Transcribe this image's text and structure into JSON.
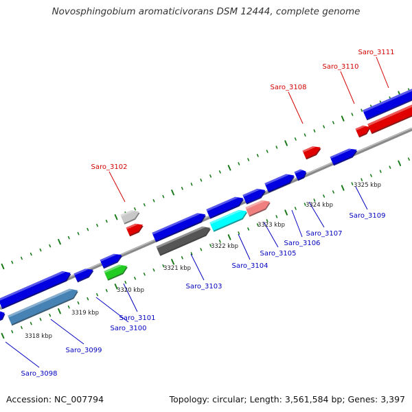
{
  "title": "Novosphingobium aromaticivorans DSM 12444, complete genome",
  "accession_label": "Accession: NC_007794",
  "topology_label": "Topology: circular; Length: 3,561,584 bp; Genes: 3,397",
  "colors": {
    "backbone": "#8a8a8a",
    "tick": "#1a7a1a",
    "forward_gene": "#0000e0",
    "reverse_gene": "#e00000",
    "label_top": "#d40000",
    "label_bottom": "#0000c0",
    "scale_text": "#222222"
  },
  "scale_labels": [
    "3318 kbp",
    "3319 kbp",
    "3320 kbp",
    "3321 kbp",
    "3322 kbp",
    "3323 kbp",
    "3324 kbp",
    "3325 kbp"
  ],
  "genes": [
    {
      "id": "g3097",
      "label": "",
      "color": "#0000e0"
    },
    {
      "id": "g3098",
      "label": "Saro_3098",
      "color": "#0000e0"
    },
    {
      "id": "g3099",
      "label": "Saro_3099",
      "color": "#4682b4"
    },
    {
      "id": "g3100",
      "label": "Saro_3100",
      "color": "#0000e0"
    },
    {
      "id": "g3101",
      "label": "Saro_3101",
      "color": "#0000e0"
    },
    {
      "id": "g3101b",
      "label": "",
      "color": "#22cc22"
    },
    {
      "id": "g3102a",
      "label": "Saro_3102",
      "color": "#c8c8c8"
    },
    {
      "id": "g3102b",
      "label": "",
      "color": "#e00000"
    },
    {
      "id": "g3103",
      "label": "Saro_3103",
      "color": "#0000e0"
    },
    {
      "id": "g3103b",
      "label": "",
      "color": "#555555"
    },
    {
      "id": "g3104",
      "label": "Saro_3104",
      "color": "#0000e0"
    },
    {
      "id": "g3104b",
      "label": "",
      "color": "#00ffff"
    },
    {
      "id": "g3105",
      "label": "Saro_3105",
      "color": "#0000e0"
    },
    {
      "id": "g3105b",
      "label": "",
      "color": "#f08080"
    },
    {
      "id": "g3106",
      "label": "Saro_3106",
      "color": "#0000e0"
    },
    {
      "id": "g3107",
      "label": "Saro_3107",
      "color": "#0000e0"
    },
    {
      "id": "g3108",
      "label": "Saro_3108",
      "color": "#e00000"
    },
    {
      "id": "g3109",
      "label": "Saro_3109",
      "color": "#0000e0"
    },
    {
      "id": "g3110",
      "label": "Saro_3110",
      "color": "#e00000"
    },
    {
      "id": "g3111",
      "label": "Saro_3111",
      "color": "#e00000"
    },
    {
      "id": "g3111b",
      "label": "",
      "color": "#0000e0"
    }
  ]
}
